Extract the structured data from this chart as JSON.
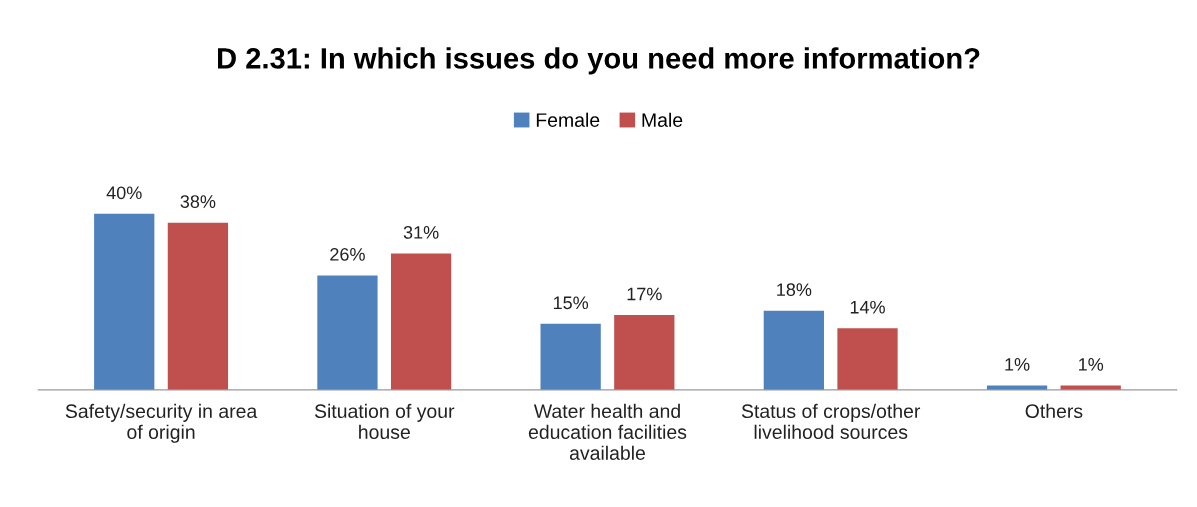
{
  "chart_data": {
    "type": "bar",
    "title": "D 2.31: In which issues do you need more information?",
    "categories": [
      "Safety/security in area\nof origin",
      "Situation of your\nhouse",
      "Water health and\neducation facilities\navailable",
      "Status of crops/other\nlivelihood sources",
      "Others"
    ],
    "series": [
      {
        "name": "Female",
        "color": "#4f81bd",
        "values": [
          40,
          26,
          15,
          18,
          1
        ],
        "value_labels": [
          "40%",
          "26%",
          "15%",
          "18%",
          "1%"
        ]
      },
      {
        "name": "Male",
        "color": "#c0504d",
        "values": [
          38,
          31,
          17,
          14,
          1
        ],
        "value_labels": [
          "38%",
          "31%",
          "17%",
          "14%",
          "1%"
        ]
      }
    ],
    "legend": "top",
    "grid": false
  }
}
